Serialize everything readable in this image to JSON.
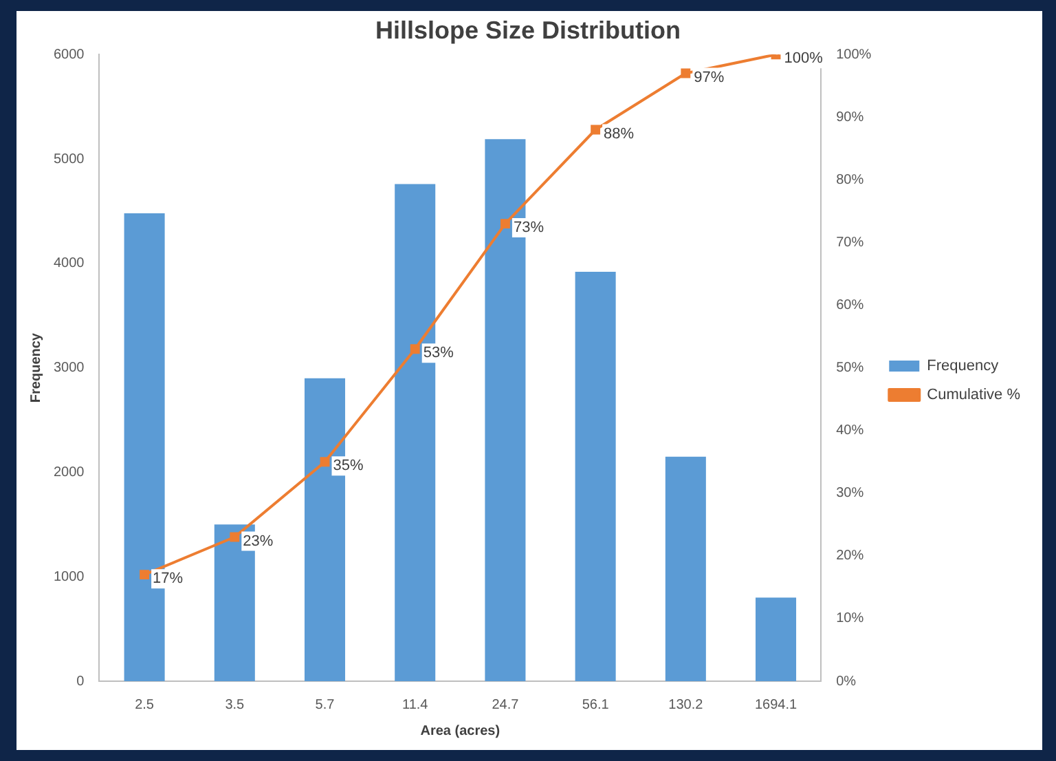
{
  "chart_data": {
    "type": "bar",
    "title": "Hillslope Size Distribution",
    "xlabel": "Area (acres)",
    "ylabel": "Frequency",
    "categories": [
      "2.5",
      "3.5",
      "5.7",
      "11.4",
      "24.7",
      "56.1",
      "130.2",
      "1694.1"
    ],
    "series": [
      {
        "name": "Frequency",
        "color": "#5b9bd5",
        "values": [
          4480,
          1500,
          2900,
          4760,
          5190,
          3920,
          2150,
          800
        ]
      },
      {
        "name": "Cumulative %",
        "type": "line",
        "axis": "y2",
        "color": "#ed7d31",
        "marker": "square",
        "values": [
          17,
          23,
          35,
          53,
          73,
          88,
          97,
          100
        ],
        "value_labels": [
          "17%",
          "23%",
          "35%",
          "53%",
          "73%",
          "88%",
          "97%",
          "100%"
        ]
      }
    ],
    "ylim": [
      0,
      6000
    ],
    "yticks": [
      0,
      1000,
      2000,
      3000,
      4000,
      5000,
      6000
    ],
    "y2lim": [
      0,
      100
    ],
    "y2ticks": [
      {
        "value": 0,
        "label": "0%"
      },
      {
        "value": 10,
        "label": "10%"
      },
      {
        "value": 20,
        "label": "20%"
      },
      {
        "value": 30,
        "label": "30%"
      },
      {
        "value": 40,
        "label": "40%"
      },
      {
        "value": 50,
        "label": "50%"
      },
      {
        "value": 60,
        "label": "60%"
      },
      {
        "value": 70,
        "label": "70%"
      },
      {
        "value": 80,
        "label": "80%"
      },
      {
        "value": 90,
        "label": "90%"
      },
      {
        "value": 100,
        "label": "100%"
      }
    ],
    "legend": "right"
  }
}
